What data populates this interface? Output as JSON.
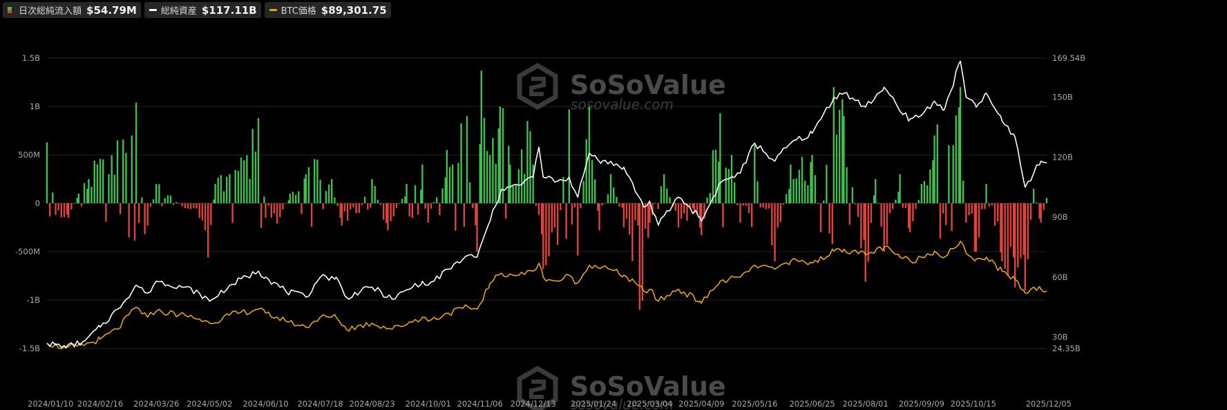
{
  "legend": [
    {
      "label": "日次総純流入額",
      "value": "$54.79M",
      "kind": "flow"
    },
    {
      "label": "総純資産",
      "value": "$117.11B",
      "kind": "line",
      "color": "#ffffff"
    },
    {
      "label": "BTC価格",
      "value": "$89,301.75",
      "kind": "line",
      "color": "#e8a317"
    }
  ],
  "watermark": {
    "brand": "SoSoValue",
    "site": "sosovalue.com"
  },
  "chart_data": {
    "type": "bar",
    "x_ticks": [
      "2024/01/10",
      "2024/02/16",
      "2024/03/26",
      "2024/05/02",
      "2024/06/10",
      "2024/07/18",
      "2024/08/23",
      "2024/10/01",
      "2024/11/06",
      "2024/12/13",
      "2025/01/24",
      "2025/03/04",
      "2025/04/09",
      "2025/05/16",
      "2025/06/25",
      "2025/08/01",
      "2025/09/09",
      "2025/10/15",
      "2025/12/05"
    ],
    "y_left": {
      "ticks": [
        "1.5B",
        "1B",
        "500M",
        "0",
        "-500M",
        "-1B",
        "-1.5B"
      ],
      "values": [
        1500,
        1000,
        500,
        0,
        -500,
        -1000,
        -1500
      ],
      "unit": "M USD"
    },
    "y_right": {
      "ticks": [
        "169.54B",
        "150B",
        "120B",
        "90B",
        "60B",
        "30B",
        "24.35B"
      ],
      "values": [
        169.54,
        150,
        120,
        90,
        60,
        30,
        24.35
      ],
      "range": [
        24.35,
        169.54
      ],
      "unit": "B USD"
    },
    "grid": true,
    "colors": {
      "inflow": "#3fbf4f",
      "outflow": "#e0433b",
      "net_assets": "#ffffff",
      "btc": "#e8a317"
    },
    "series": [
      {
        "name": "日次総純流入額",
        "kind": "bars",
        "note": "daily net inflow in millions USD, signed",
        "keyframes": [
          [
            "2024/01/10",
            630
          ],
          [
            "2024/01/16",
            -120
          ],
          [
            "2024/01/25",
            -150
          ],
          [
            "2024/02/01",
            100
          ],
          [
            "2024/02/08",
            250
          ],
          [
            "2024/02/16",
            460
          ],
          [
            "2024/02/22",
            300
          ],
          [
            "2024/02/28",
            650
          ],
          [
            "2024/03/05",
            520
          ],
          [
            "2024/03/12",
            1040
          ],
          [
            "2024/03/18",
            -320
          ],
          [
            "2024/03/26",
            200
          ],
          [
            "2024/04/05",
            80
          ],
          [
            "2024/04/15",
            -50
          ],
          [
            "2024/04/25",
            -150
          ],
          [
            "2024/05/01",
            -560
          ],
          [
            "2024/05/06",
            200
          ],
          [
            "2024/05/16",
            300
          ],
          [
            "2024/06/05",
            880
          ],
          [
            "2024/06/10",
            -150
          ],
          [
            "2024/06/18",
            -210
          ],
          [
            "2024/06/27",
            100
          ],
          [
            "2024/07/08",
            300
          ],
          [
            "2024/07/16",
            450
          ],
          [
            "2024/07/26",
            250
          ],
          [
            "2024/08/02",
            -230
          ],
          [
            "2024/08/14",
            -100
          ],
          [
            "2024/08/23",
            250
          ],
          [
            "2024/09/03",
            -280
          ],
          [
            "2024/09/16",
            200
          ],
          [
            "2024/09/27",
            400
          ],
          [
            "2024/10/01",
            -200
          ],
          [
            "2024/10/14",
            550
          ],
          [
            "2024/10/18",
            400
          ],
          [
            "2024/10/28",
            900
          ],
          [
            "2024/11/01",
            -50
          ],
          [
            "2024/11/04",
            -500
          ],
          [
            "2024/11/07",
            1370
          ],
          [
            "2024/11/13",
            500
          ],
          [
            "2024/11/20",
            1000
          ],
          [
            "2024/11/27",
            400
          ],
          [
            "2024/12/03",
            350
          ],
          [
            "2024/12/09",
            850
          ],
          [
            "2024/12/13",
            400
          ],
          [
            "2024/12/20",
            -680
          ],
          [
            "2024/12/30",
            -430
          ],
          [
            "2025/01/07",
            970
          ],
          [
            "2025/01/13",
            -540
          ],
          [
            "2025/01/21",
            1000
          ],
          [
            "2025/01/28",
            -280
          ],
          [
            "2025/02/05",
            300
          ],
          [
            "2025/02/14",
            -250
          ],
          [
            "2025/02/25",
            -1100
          ],
          [
            "2025/03/04",
            -200
          ],
          [
            "2025/03/14",
            300
          ],
          [
            "2025/03/24",
            -250
          ],
          [
            "2025/04/04",
            -100
          ],
          [
            "2025/04/09",
            -330
          ],
          [
            "2025/04/22",
            930
          ],
          [
            "2025/04/30",
            500
          ],
          [
            "2025/05/06",
            -200
          ],
          [
            "2025/05/16",
            600
          ],
          [
            "2025/05/30",
            -600
          ],
          [
            "2025/06/10",
            400
          ],
          [
            "2025/06/25",
            500
          ],
          [
            "2025/07/01",
            -300
          ],
          [
            "2025/07/10",
            1200
          ],
          [
            "2025/07/17",
            900
          ],
          [
            "2025/08/01",
            -810
          ],
          [
            "2025/08/08",
            250
          ],
          [
            "2025/08/14",
            -500
          ],
          [
            "2025/08/25",
            300
          ],
          [
            "2025/09/01",
            -300
          ],
          [
            "2025/09/09",
            200
          ],
          [
            "2025/09/18",
            700
          ],
          [
            "2025/10/01",
            600
          ],
          [
            "2025/10/06",
            1200
          ],
          [
            "2025/10/10",
            -200
          ],
          [
            "2025/10/17",
            -500
          ],
          [
            "2025/10/24",
            200
          ],
          [
            "2025/11/04",
            -600
          ],
          [
            "2025/11/13",
            -870
          ],
          [
            "2025/11/20",
            -900
          ],
          [
            "2025/11/26",
            150
          ],
          [
            "2025/12/01",
            -200
          ],
          [
            "2025/12/05",
            54.79
          ]
        ]
      },
      {
        "name": "総純資産",
        "kind": "line",
        "axis": "right",
        "note": "total net assets in billions USD",
        "keyframes": [
          [
            "2024/01/10",
            27
          ],
          [
            "2024/01/23",
            24.8
          ],
          [
            "2024/02/05",
            28
          ],
          [
            "2024/02/16",
            35
          ],
          [
            "2024/02/28",
            44
          ],
          [
            "2024/03/12",
            56
          ],
          [
            "2024/03/20",
            52
          ],
          [
            "2024/03/26",
            58
          ],
          [
            "2024/04/15",
            55
          ],
          [
            "2024/04/25",
            52
          ],
          [
            "2024/05/02",
            48
          ],
          [
            "2024/05/16",
            56
          ],
          [
            "2024/06/05",
            63
          ],
          [
            "2024/06/10",
            60
          ],
          [
            "2024/06/24",
            53
          ],
          [
            "2024/07/08",
            50
          ],
          [
            "2024/07/18",
            60
          ],
          [
            "2024/07/29",
            60
          ],
          [
            "2024/08/05",
            50
          ],
          [
            "2024/08/23",
            55
          ],
          [
            "2024/09/06",
            49
          ],
          [
            "2024/09/27",
            58
          ],
          [
            "2024/10/01",
            56
          ],
          [
            "2024/10/15",
            64
          ],
          [
            "2024/10/29",
            71
          ],
          [
            "2024/11/04",
            70
          ],
          [
            "2024/11/13",
            88
          ],
          [
            "2024/11/21",
            104
          ],
          [
            "2024/12/03",
            106
          ],
          [
            "2024/12/13",
            110
          ],
          [
            "2024/12/17",
            125
          ],
          [
            "2024/12/20",
            110
          ],
          [
            "2024/12/30",
            108
          ],
          [
            "2025/01/07",
            110
          ],
          [
            "2025/01/13",
            100
          ],
          [
            "2025/01/21",
            122
          ],
          [
            "2025/01/30",
            118
          ],
          [
            "2025/02/14",
            115
          ],
          [
            "2025/02/28",
            95
          ],
          [
            "2025/03/04",
            98
          ],
          [
            "2025/03/10",
            86
          ],
          [
            "2025/03/24",
            100
          ],
          [
            "2025/04/08",
            90
          ],
          [
            "2025/04/09",
            88
          ],
          [
            "2025/04/22",
            107
          ],
          [
            "2025/05/06",
            112
          ],
          [
            "2025/05/16",
            127
          ],
          [
            "2025/05/30",
            118
          ],
          [
            "2025/06/10",
            127
          ],
          [
            "2025/06/25",
            132
          ],
          [
            "2025/07/10",
            150
          ],
          [
            "2025/07/17",
            152
          ],
          [
            "2025/08/01",
            145
          ],
          [
            "2025/08/14",
            155
          ],
          [
            "2025/08/25",
            143
          ],
          [
            "2025/09/01",
            139
          ],
          [
            "2025/09/09",
            141
          ],
          [
            "2025/09/18",
            148
          ],
          [
            "2025/09/25",
            144
          ],
          [
            "2025/10/06",
            168
          ],
          [
            "2025/10/10",
            150
          ],
          [
            "2025/10/17",
            145
          ],
          [
            "2025/10/24",
            152
          ],
          [
            "2025/11/04",
            138
          ],
          [
            "2025/11/13",
            130
          ],
          [
            "2025/11/20",
            105
          ],
          [
            "2025/11/26",
            112
          ],
          [
            "2025/12/01",
            118
          ],
          [
            "2025/12/05",
            117.11
          ]
        ]
      },
      {
        "name": "BTC価格",
        "kind": "line",
        "axis": "right",
        "note": "BTC price shown on same right scale",
        "keyframes": [
          [
            "2024/01/10",
            27
          ],
          [
            "2024/01/23",
            24.6
          ],
          [
            "2024/02/05",
            26
          ],
          [
            "2024/02/16",
            29
          ],
          [
            "2024/02/28",
            34
          ],
          [
            "2024/03/12",
            45
          ],
          [
            "2024/03/20",
            40
          ],
          [
            "2024/03/26",
            43
          ],
          [
            "2024/04/15",
            41
          ],
          [
            "2024/04/25",
            39
          ],
          [
            "2024/05/02",
            37
          ],
          [
            "2024/05/16",
            41
          ],
          [
            "2024/06/05",
            44
          ],
          [
            "2024/06/10",
            42
          ],
          [
            "2024/06/24",
            38
          ],
          [
            "2024/07/08",
            35
          ],
          [
            "2024/07/18",
            40
          ],
          [
            "2024/07/29",
            40
          ],
          [
            "2024/08/05",
            34
          ],
          [
            "2024/08/23",
            37
          ],
          [
            "2024/09/06",
            34
          ],
          [
            "2024/09/27",
            40
          ],
          [
            "2024/10/01",
            38
          ],
          [
            "2024/10/15",
            42
          ],
          [
            "2024/10/29",
            45
          ],
          [
            "2024/11/04",
            44
          ],
          [
            "2024/11/13",
            57
          ],
          [
            "2024/11/21",
            62
          ],
          [
            "2024/12/03",
            61
          ],
          [
            "2024/12/13",
            63
          ],
          [
            "2024/12/17",
            67
          ],
          [
            "2024/12/20",
            60
          ],
          [
            "2024/12/30",
            58
          ],
          [
            "2025/01/07",
            61
          ],
          [
            "2025/01/13",
            57
          ],
          [
            "2025/01/21",
            66
          ],
          [
            "2025/01/30",
            65
          ],
          [
            "2025/02/14",
            61
          ],
          [
            "2025/02/28",
            53
          ],
          [
            "2025/03/04",
            54
          ],
          [
            "2025/03/10",
            48
          ],
          [
            "2025/03/24",
            54
          ],
          [
            "2025/04/08",
            48
          ],
          [
            "2025/04/09",
            47
          ],
          [
            "2025/04/22",
            58
          ],
          [
            "2025/05/06",
            60
          ],
          [
            "2025/05/16",
            66
          ],
          [
            "2025/05/30",
            64
          ],
          [
            "2025/06/10",
            68
          ],
          [
            "2025/06/25",
            67
          ],
          [
            "2025/07/10",
            73
          ],
          [
            "2025/07/17",
            74
          ],
          [
            "2025/08/01",
            71
          ],
          [
            "2025/08/14",
            75
          ],
          [
            "2025/08/25",
            70
          ],
          [
            "2025/09/01",
            68
          ],
          [
            "2025/09/09",
            70
          ],
          [
            "2025/09/18",
            73
          ],
          [
            "2025/09/25",
            70
          ],
          [
            "2025/10/06",
            78
          ],
          [
            "2025/10/10",
            72
          ],
          [
            "2025/10/17",
            69
          ],
          [
            "2025/10/24",
            70
          ],
          [
            "2025/11/04",
            63
          ],
          [
            "2025/11/13",
            59
          ],
          [
            "2025/11/20",
            52
          ],
          [
            "2025/11/26",
            55
          ],
          [
            "2025/12/01",
            54
          ],
          [
            "2025/12/05",
            53
          ]
        ]
      }
    ]
  }
}
